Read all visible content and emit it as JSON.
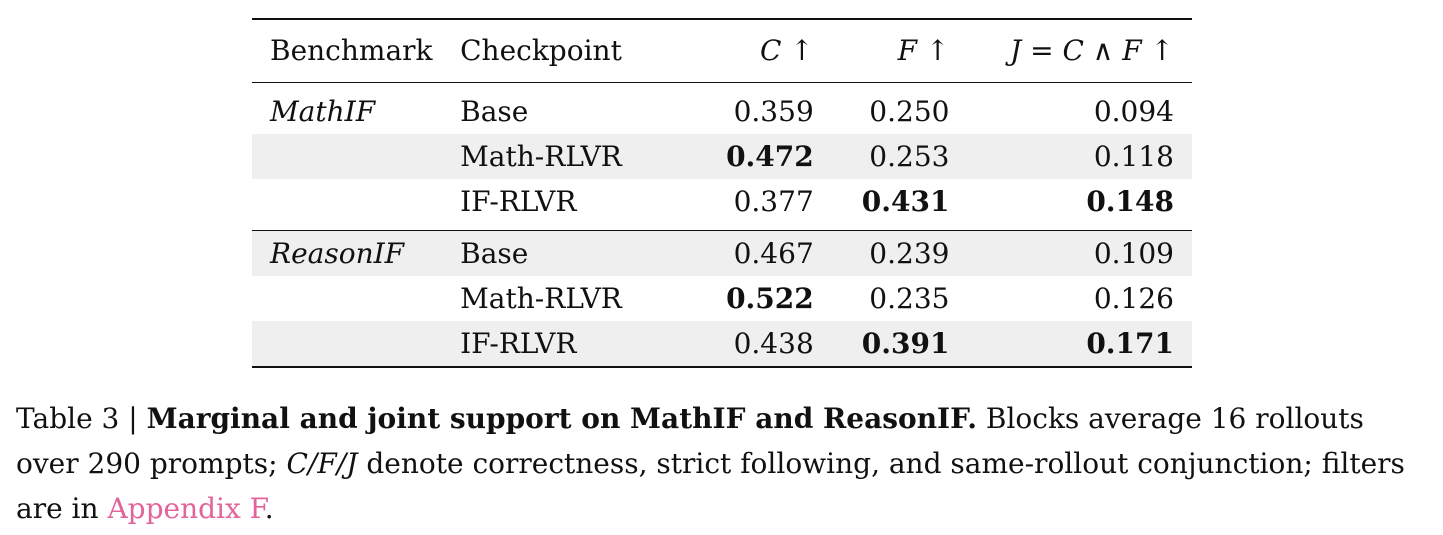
{
  "table": {
    "headers": {
      "benchmark": "Benchmark",
      "checkpoint": "Checkpoint",
      "c": "C ↑",
      "f": "F ↑",
      "j": "J = C ∧ F ↑"
    },
    "groups": [
      {
        "benchmark": "MathIF",
        "rows": [
          {
            "checkpoint": "Base",
            "c": "0.359",
            "f": "0.250",
            "j": "0.094"
          },
          {
            "checkpoint": "Math-RLVR",
            "c": "0.472",
            "f": "0.253",
            "j": "0.118"
          },
          {
            "checkpoint": "IF-RLVR",
            "c": "0.377",
            "f": "0.431",
            "j": "0.148"
          }
        ]
      },
      {
        "benchmark": "ReasonIF",
        "rows": [
          {
            "checkpoint": "Base",
            "c": "0.467",
            "f": "0.239",
            "j": "0.109"
          },
          {
            "checkpoint": "Math-RLVR",
            "c": "0.522",
            "f": "0.235",
            "j": "0.126"
          },
          {
            "checkpoint": "IF-RLVR",
            "c": "0.438",
            "f": "0.391",
            "j": "0.171"
          }
        ]
      }
    ]
  },
  "caption": {
    "label": "Table 3 | ",
    "lead": "Marginal and joint support on MathIF and ReasonIF.",
    "body_1": " Blocks average 16 rollouts over 290 prompts; ",
    "vars": "C/F/J",
    "body_2": " denote correctness, strict following, and same-rollout conjunction; filters are in ",
    "link": "Appendix F",
    "end": "."
  }
}
